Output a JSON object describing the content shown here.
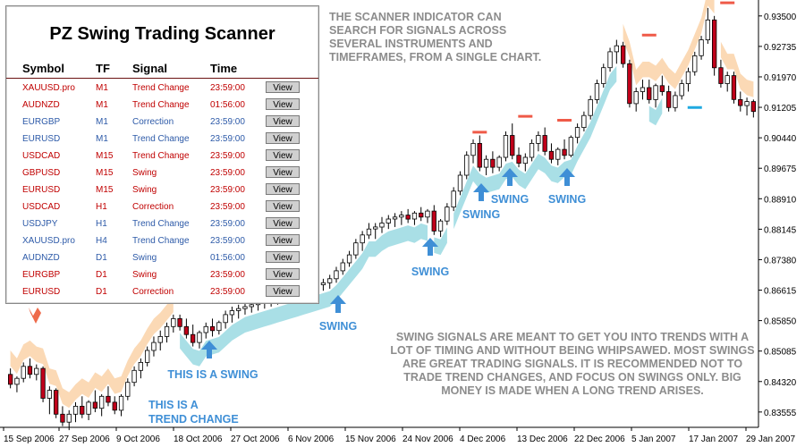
{
  "scanner": {
    "title": "PZ Swing Trading Scanner",
    "headers": {
      "symbol": "Symbol",
      "tf": "TF",
      "signal": "Signal",
      "time": "Time"
    },
    "view_label": "View",
    "rows": [
      {
        "symbol": "XAUUSD.pro",
        "tf": "M1",
        "signal": "Trend Change",
        "time": "23:59:00",
        "color": "#c00000"
      },
      {
        "symbol": "AUDNZD",
        "tf": "M1",
        "signal": "Trend Change",
        "time": "01:56:00",
        "color": "#c00000"
      },
      {
        "symbol": "EURGBP",
        "tf": "M1",
        "signal": "Correction",
        "time": "23:59:00",
        "color": "#2d5aa8"
      },
      {
        "symbol": "EURUSD",
        "tf": "M1",
        "signal": "Trend Change",
        "time": "23:59:00",
        "color": "#2d5aa8"
      },
      {
        "symbol": "USDCAD",
        "tf": "M15",
        "signal": "Trend Change",
        "time": "23:59:00",
        "color": "#c00000"
      },
      {
        "symbol": "GBPUSD",
        "tf": "M15",
        "signal": "Swing",
        "time": "23:59:00",
        "color": "#c00000"
      },
      {
        "symbol": "EURUSD",
        "tf": "M15",
        "signal": "Swing",
        "time": "23:59:00",
        "color": "#c00000"
      },
      {
        "symbol": "USDCAD",
        "tf": "H1",
        "signal": "Correction",
        "time": "23:59:00",
        "color": "#c00000"
      },
      {
        "symbol": "USDJPY",
        "tf": "H1",
        "signal": "Trend Change",
        "time": "23:59:00",
        "color": "#2d5aa8"
      },
      {
        "symbol": "XAUUSD.pro",
        "tf": "H4",
        "signal": "Trend Change",
        "time": "23:59:00",
        "color": "#2d5aa8"
      },
      {
        "symbol": "AUDNZD",
        "tf": "D1",
        "signal": "Swing",
        "time": "01:56:00",
        "color": "#2d5aa8"
      },
      {
        "symbol": "EURGBP",
        "tf": "D1",
        "signal": "Swing",
        "time": "23:59:00",
        "color": "#c00000"
      },
      {
        "symbol": "EURUSD",
        "tf": "D1",
        "signal": "Correction",
        "time": "23:59:00",
        "color": "#c00000"
      }
    ]
  },
  "notes": {
    "top": "THE SCANNER INDICATOR CAN SEARCH FOR SIGNALS ACROSS SEVERAL INSTRUMENTS AND TIMEFRAMES, FROM A SINGLE CHART.",
    "bottom": "SWING SIGNALS ARE MEANT TO GET YOU INTO TRENDS WITH A LOT OF TIMING AND WITHOUT BEING WHIPSAWED. MOST SWINGS ARE GREAT TRADING SIGNALS. IT IS RECOMMENDED NOT TO TRADE TREND CHANGES, AND FOCUS ON SWINGS ONLY. BIG MONEY IS MADE WHEN A LONG TREND ARISES."
  },
  "annotations": [
    {
      "text": "SWING"
    },
    {
      "text": "SWING"
    },
    {
      "text": "SWING"
    },
    {
      "text": "SWING"
    },
    {
      "text": "SWING"
    },
    {
      "text": "THIS IS A SWING"
    },
    {
      "text": "THIS IS A"
    },
    {
      "text": "TREND CHANGE"
    }
  ],
  "colors": {
    "bull_candle": "#ffffff",
    "bear_candle": "#c0001a",
    "candle_outline": "#000000",
    "support_band": "#a9dfe6",
    "resistance_band": "#fbd9b5",
    "annotation_blue": "#3f8fd6",
    "sell_arrow": "#ee6a4a",
    "sell_level": "#ef5a48",
    "buy_level": "#1fa9e0"
  },
  "chart_data": {
    "type": "candlestick",
    "y_ticks": [
      "0.93500",
      "0.92735",
      "0.91970",
      "0.91205",
      "0.90440",
      "0.89675",
      "0.88910",
      "0.88145",
      "0.87380",
      "0.86615",
      "0.85850",
      "0.85085",
      "0.84320",
      "0.83555"
    ],
    "x_ticks": [
      "15 Sep 2006",
      "27 Sep 2006",
      "9 Oct 2006",
      "18 Oct 2006",
      "27 Oct 2006",
      "6 Nov 2006",
      "15 Nov 2006",
      "24 Nov 2006",
      "4 Dec 2006",
      "13 Dec 2006",
      "22 Dec 2006",
      "5 Jan 2007",
      "17 Jan 2007",
      "29 Jan 2007"
    ],
    "ylim": [
      0.8317,
      0.939
    ],
    "candles": [
      [
        0.845,
        0.8465,
        0.8415,
        0.8425
      ],
      [
        0.8425,
        0.8445,
        0.8405,
        0.844
      ],
      [
        0.844,
        0.848,
        0.843,
        0.847
      ],
      [
        0.847,
        0.849,
        0.844,
        0.845
      ],
      [
        0.845,
        0.8475,
        0.8435,
        0.8465
      ],
      [
        0.8465,
        0.847,
        0.838,
        0.839
      ],
      [
        0.839,
        0.842,
        0.835,
        0.841
      ],
      [
        0.841,
        0.8415,
        0.834,
        0.835
      ],
      [
        0.835,
        0.837,
        0.832,
        0.833
      ],
      [
        0.833,
        0.836,
        0.831,
        0.835
      ],
      [
        0.835,
        0.838,
        0.833,
        0.837
      ],
      [
        0.837,
        0.8395,
        0.834,
        0.835
      ],
      [
        0.835,
        0.8385,
        0.8335,
        0.838
      ],
      [
        0.838,
        0.841,
        0.8355,
        0.8365
      ],
      [
        0.8365,
        0.84,
        0.8345,
        0.8395
      ],
      [
        0.8395,
        0.842,
        0.837,
        0.838
      ],
      [
        0.838,
        0.8395,
        0.835,
        0.836
      ],
      [
        0.836,
        0.84,
        0.8345,
        0.8395
      ],
      [
        0.8395,
        0.844,
        0.8385,
        0.843
      ],
      [
        0.843,
        0.847,
        0.842,
        0.846
      ],
      [
        0.846,
        0.849,
        0.844,
        0.848
      ],
      [
        0.848,
        0.852,
        0.847,
        0.851
      ],
      [
        0.851,
        0.8545,
        0.8495,
        0.853
      ],
      [
        0.853,
        0.856,
        0.851,
        0.8545
      ],
      [
        0.8545,
        0.858,
        0.853,
        0.857
      ],
      [
        0.857,
        0.86,
        0.8555,
        0.859
      ],
      [
        0.859,
        0.86,
        0.856,
        0.857
      ],
      [
        0.857,
        0.859,
        0.854,
        0.855
      ],
      [
        0.855,
        0.8575,
        0.852,
        0.853
      ],
      [
        0.853,
        0.856,
        0.8515,
        0.8555
      ],
      [
        0.8555,
        0.858,
        0.854,
        0.857
      ],
      [
        0.857,
        0.859,
        0.8545,
        0.856
      ],
      [
        0.856,
        0.8585,
        0.855,
        0.858
      ],
      [
        0.858,
        0.861,
        0.8565,
        0.86
      ],
      [
        0.86,
        0.862,
        0.858,
        0.861
      ],
      [
        0.861,
        0.8625,
        0.859,
        0.8615
      ],
      [
        0.8615,
        0.863,
        0.86,
        0.862
      ],
      [
        0.862,
        0.8635,
        0.8605,
        0.8625
      ],
      [
        0.8625,
        0.864,
        0.861,
        0.863
      ],
      [
        0.863,
        0.8645,
        0.8615,
        0.8635
      ],
      [
        0.8635,
        0.865,
        0.862,
        0.864
      ],
      [
        0.864,
        0.8655,
        0.8625,
        0.8645
      ],
      [
        0.8645,
        0.866,
        0.863,
        0.865
      ],
      [
        0.865,
        0.8665,
        0.8635,
        0.8655
      ],
      [
        0.8655,
        0.867,
        0.864,
        0.866
      ],
      [
        0.866,
        0.8675,
        0.8645,
        0.8665
      ],
      [
        0.8665,
        0.868,
        0.865,
        0.867
      ],
      [
        0.867,
        0.8685,
        0.8655,
        0.8675
      ],
      [
        0.8675,
        0.869,
        0.866,
        0.868
      ],
      [
        0.868,
        0.87,
        0.8665,
        0.869
      ],
      [
        0.869,
        0.872,
        0.868,
        0.871
      ],
      [
        0.871,
        0.874,
        0.87,
        0.873
      ],
      [
        0.873,
        0.876,
        0.872,
        0.875
      ],
      [
        0.875,
        0.879,
        0.874,
        0.878
      ],
      [
        0.878,
        0.881,
        0.876,
        0.88
      ],
      [
        0.88,
        0.883,
        0.879,
        0.8815
      ],
      [
        0.8815,
        0.883,
        0.879,
        0.882
      ],
      [
        0.882,
        0.8845,
        0.8805,
        0.883
      ],
      [
        0.883,
        0.885,
        0.8815,
        0.884
      ],
      [
        0.884,
        0.8855,
        0.882,
        0.8845
      ],
      [
        0.8845,
        0.886,
        0.8825,
        0.885
      ],
      [
        0.885,
        0.8865,
        0.883,
        0.884
      ],
      [
        0.884,
        0.886,
        0.8825,
        0.8855
      ],
      [
        0.8855,
        0.887,
        0.8835,
        0.8845
      ],
      [
        0.8845,
        0.8865,
        0.883,
        0.886
      ],
      [
        0.886,
        0.8875,
        0.88,
        0.881
      ],
      [
        0.881,
        0.884,
        0.8795,
        0.8835
      ],
      [
        0.8835,
        0.888,
        0.8825,
        0.887
      ],
      [
        0.887,
        0.892,
        0.886,
        0.891
      ],
      [
        0.891,
        0.896,
        0.89,
        0.895
      ],
      [
        0.895,
        0.901,
        0.894,
        0.9
      ],
      [
        0.9,
        0.904,
        0.898,
        0.903
      ],
      [
        0.903,
        0.905,
        0.896,
        0.897
      ],
      [
        0.897,
        0.9,
        0.895,
        0.899
      ],
      [
        0.899,
        0.901,
        0.8955,
        0.897
      ],
      [
        0.897,
        0.9,
        0.896,
        0.8995
      ],
      [
        0.8995,
        0.906,
        0.8985,
        0.905
      ],
      [
        0.905,
        0.908,
        0.899,
        0.9
      ],
      [
        0.9,
        0.902,
        0.897,
        0.898
      ],
      [
        0.898,
        0.9005,
        0.896,
        0.8995
      ],
      [
        0.8995,
        0.904,
        0.8985,
        0.903
      ],
      [
        0.903,
        0.906,
        0.901,
        0.905
      ],
      [
        0.905,
        0.907,
        0.9,
        0.901
      ],
      [
        0.901,
        0.903,
        0.898,
        0.899
      ],
      [
        0.899,
        0.902,
        0.8975,
        0.9015
      ],
      [
        0.9015,
        0.904,
        0.899,
        0.9
      ],
      [
        0.9,
        0.905,
        0.8995,
        0.9045
      ],
      [
        0.9045,
        0.908,
        0.903,
        0.907
      ],
      [
        0.907,
        0.911,
        0.906,
        0.91
      ],
      [
        0.91,
        0.915,
        0.909,
        0.914
      ],
      [
        0.914,
        0.919,
        0.913,
        0.918
      ],
      [
        0.918,
        0.923,
        0.917,
        0.922
      ],
      [
        0.922,
        0.927,
        0.921,
        0.926
      ],
      [
        0.926,
        0.929,
        0.923,
        0.9275
      ],
      [
        0.9275,
        0.9285,
        0.922,
        0.923
      ],
      [
        0.923,
        0.924,
        0.912,
        0.913
      ],
      [
        0.913,
        0.917,
        0.911,
        0.916
      ],
      [
        0.916,
        0.919,
        0.914,
        0.917
      ],
      [
        0.917,
        0.919,
        0.913,
        0.914
      ],
      [
        0.914,
        0.918,
        0.912,
        0.9175
      ],
      [
        0.9175,
        0.92,
        0.915,
        0.916
      ],
      [
        0.916,
        0.9175,
        0.911,
        0.912
      ],
      [
        0.912,
        0.916,
        0.911,
        0.915
      ],
      [
        0.915,
        0.919,
        0.914,
        0.918
      ],
      [
        0.918,
        0.922,
        0.916,
        0.921
      ],
      [
        0.921,
        0.926,
        0.92,
        0.925
      ],
      [
        0.925,
        0.93,
        0.924,
        0.929
      ],
      [
        0.929,
        0.937,
        0.928,
        0.934
      ],
      [
        0.934,
        0.935,
        0.92,
        0.922
      ],
      [
        0.922,
        0.924,
        0.917,
        0.918
      ],
      [
        0.918,
        0.921,
        0.916,
        0.92
      ],
      [
        0.92,
        0.921,
        0.913,
        0.914
      ],
      [
        0.914,
        0.916,
        0.911,
        0.9125
      ],
      [
        0.9125,
        0.9145,
        0.91,
        0.9135
      ],
      [
        0.9135,
        0.914,
        0.9095,
        0.911
      ]
    ],
    "annotations_text": [
      "SWING",
      "THIS IS A SWING",
      "THIS IS A TREND CHANGE"
    ]
  }
}
